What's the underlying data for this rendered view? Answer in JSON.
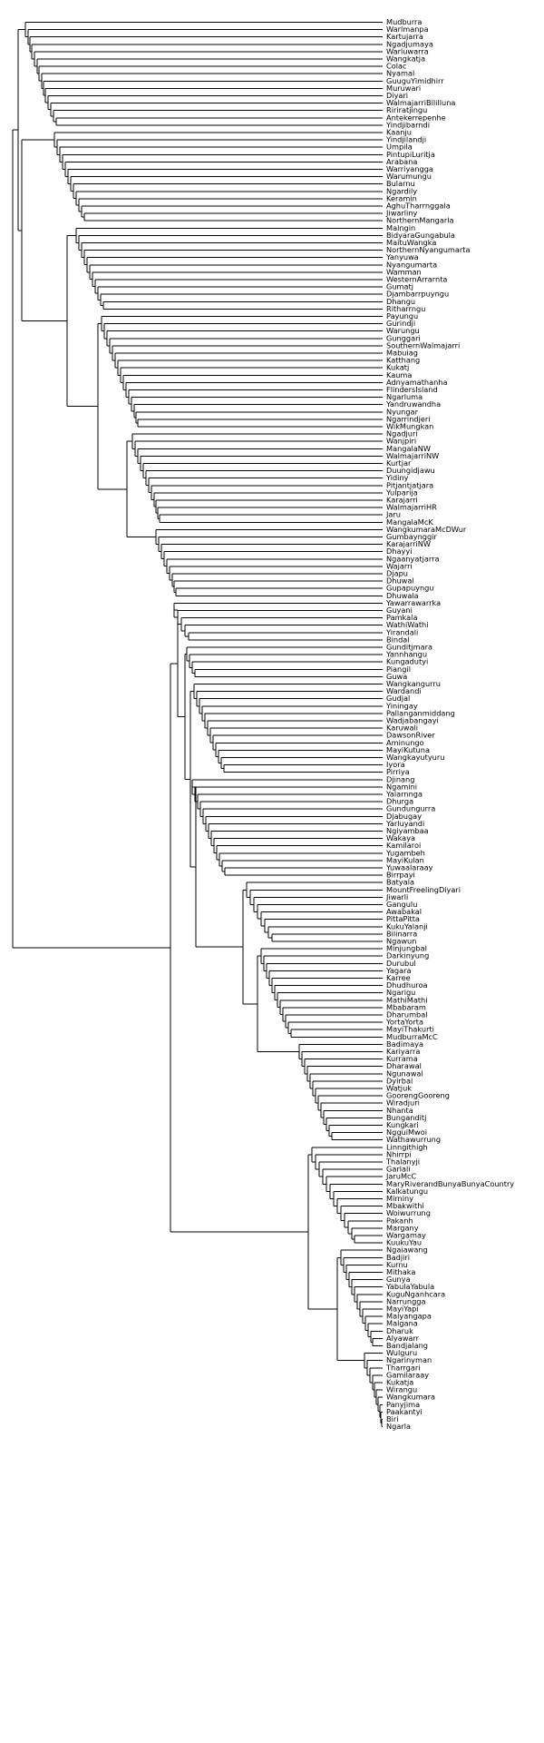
{
  "tree": {
    "tips": [
      "Mudburra",
      "Warlmanpa",
      "Kartujarra",
      "Ngadjumaya",
      "Warluwarra",
      "Wangkatja",
      "Colac",
      "Nyamal",
      "GuuguYimidhirr",
      "Muruwari",
      "Diyari",
      "WalmajarriBililluna",
      "Ririratjingu",
      "Antekerrepenhe",
      "Yindjibarndi",
      "Kaanju",
      "Yindjilandji",
      "Umpila",
      "PintupiLuritja",
      "Arabana",
      "Warriyangga",
      "Warumungu",
      "Bularnu",
      "Ngardily",
      "Keramin",
      "AghuTharrnggala",
      "Jiwarliny",
      "NorthernMangarla",
      "Malngin",
      "BidyaraGungabula",
      "MaituWangka",
      "NorthernNyangumarta",
      "Yanyuwa",
      "Nyangumarta",
      "Wamman",
      "WesternArrarnta",
      "Gumatj",
      "Djambarrpuyngu",
      "Dhangu",
      "Ritharrngu",
      "Payungu",
      "Gurindji",
      "Warungu",
      "Gunggari",
      "SouthernWalmajarri",
      "Mabuiag",
      "Katthang",
      "Kukatj",
      "Kauma",
      "Adnyamathanha",
      "FlindersIsland",
      "Ngarluma",
      "Yandruwandha",
      "Nyungar",
      "Ngarrindjeri",
      "WikMungkan",
      "Ngadjuri",
      "Wanjpiri",
      "MangalaNW",
      "WalmajarriNW",
      "Kurtjar",
      "Duungidjawu",
      "Yidiny",
      "Pitjantjatjara",
      "Yulparija",
      "Karajarri",
      "WalmajarriHR",
      "Jaru",
      "MangalaMcK",
      "WangkumaraMcDWur",
      "Gumbaynggir",
      "KarajarriNW",
      "Dhayyi",
      "Ngaanyatjarra",
      "Wajarri",
      "Djapu",
      "Dhuwal",
      "Gupapuyngu",
      "Dhuwala",
      "Yawarrawarrka",
      "Guyani",
      "Pamkala",
      "WathiWathi",
      "Yirandali",
      "Bindal",
      "Gunditjmara",
      "Yannhangu",
      "Kungadutyi",
      "Piangil",
      "Guwa",
      "Wangkangurru",
      "Wardandi",
      "Gudjal",
      "Yiningay",
      "Pallanganmiddang",
      "Wadjabangayi",
      "Karuwali",
      "DawsonRiver",
      "Aminungo",
      "MayiKutuna",
      "Wangkayutyuru",
      "Iyora",
      "Pirriya",
      "Djinang",
      "Ngamini",
      "Yalarnnga",
      "Dhurga",
      "Gundungurra",
      "Djabugay",
      "Yarluyandi",
      "Ngiyambaa",
      "Wakaya",
      "Kamilaroi",
      "Yugambeh",
      "MayiKulan",
      "Yuwaalaraay",
      "Birrpayi",
      "Batyala",
      "MountFreelingDiyari",
      "Jiwarli",
      "Gangulu",
      "Awabakal",
      "PittaPitta",
      "KukuYalanji",
      "Bilinarra",
      "Ngawun",
      "Minjungbal",
      "Darkinyung",
      "Durubul",
      "Yagara",
      "Karree",
      "Dhudhuroa",
      "Ngarigu",
      "MathiMathi",
      "Mbabaram",
      "Dharumbal",
      "YortaYorta",
      "MayiThakurti",
      "MudburraMcC",
      "Badimaya",
      "Kariyarra",
      "Kurrama",
      "Dharawal",
      "Ngunawal",
      "Dyirbal",
      "Watjuk",
      "GoorengGooreng",
      "Wiradjuri",
      "Nhanta",
      "Bunganditj",
      "Kungkari",
      "NgguiMwoi",
      "Wathawurrung",
      "Linngithigh",
      "Nhirrpi",
      "Thalanyji",
      "Garlali",
      "JaruMcC",
      "MaryRiverandBunyaBunyaCountry",
      "Kalkatungu",
      "Mirniny",
      "Mbakwithi",
      "Woiwurrung",
      "Pakanh",
      "Margany",
      "Wargamay",
      "KuukuYau",
      "Ngaiawang",
      "Badjiri",
      "Kurnu",
      "Mithaka",
      "Gunya",
      "YabulaYabula",
      "KuguNganhcara",
      "Narrungga",
      "MayiYapi",
      "Malyangapa",
      "Malgana",
      "Dharuk",
      "Alyawarr",
      "Bandjalang",
      "Wulguru",
      "Ngarinyman",
      "Tharrgari",
      "Gamilaraay",
      "Kukatja",
      "Wirangu",
      "Wangkumara",
      "Panyjima",
      "Paakantyi",
      "Biri",
      "Ngarla"
    ]
  }
}
